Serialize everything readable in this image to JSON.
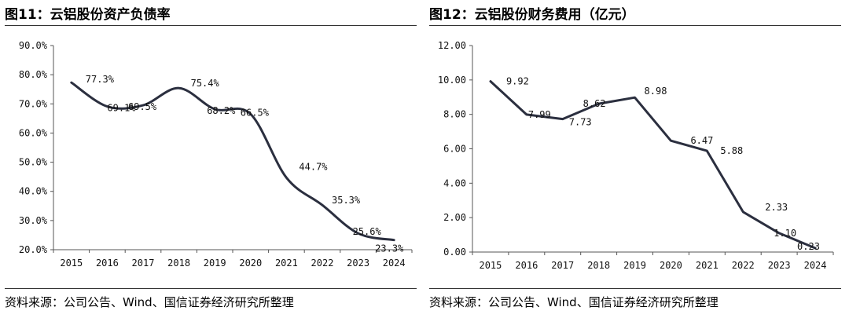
{
  "chart_data": [
    {
      "type": "line",
      "title": "图11：云铝股份资产负债率",
      "categories": [
        "2015",
        "2016",
        "2017",
        "2018",
        "2019",
        "2020",
        "2021",
        "2022",
        "2023",
        "2024"
      ],
      "values": [
        77.3,
        69.1,
        69.5,
        75.4,
        68.2,
        66.5,
        44.7,
        35.3,
        25.6,
        23.3
      ],
      "data_labels": [
        "77.3%",
        "69.1%",
        "69.5%",
        "75.4%",
        "68.2%",
        "66.5%",
        "44.7%",
        "35.3%",
        "25.6%",
        "23.3%"
      ],
      "y_ticks": [
        "20.0%",
        "30.0%",
        "40.0%",
        "50.0%",
        "60.0%",
        "70.0%",
        "80.0%",
        "90.0%"
      ],
      "ylim": [
        20,
        90
      ],
      "xlabel": "",
      "ylabel": "",
      "grid": false,
      "line_color": "#2b2f3f",
      "source": "资料来源：公司公告、Wind、国信证券经济研究所整理"
    },
    {
      "type": "line",
      "title": "图12：云铝股份财务费用（亿元）",
      "categories": [
        "2015",
        "2016",
        "2017",
        "2018",
        "2019",
        "2020",
        "2021",
        "2022",
        "2023",
        "2024"
      ],
      "values": [
        9.92,
        7.99,
        7.73,
        8.62,
        8.98,
        6.47,
        5.88,
        2.33,
        1.1,
        0.23
      ],
      "data_labels": [
        "9.92",
        "7.99",
        "7.73",
        "8.62",
        "8.98",
        "6.47",
        "5.88",
        "2.33",
        "1.10",
        "0.23"
      ],
      "y_ticks": [
        "0.00",
        "2.00",
        "4.00",
        "6.00",
        "8.00",
        "10.00",
        "12.00"
      ],
      "ylim": [
        0,
        12
      ],
      "xlabel": "",
      "ylabel": "",
      "grid": false,
      "line_color": "#2b2f3f",
      "source": "资料来源：公司公告、Wind、国信证券经济研究所整理"
    }
  ]
}
